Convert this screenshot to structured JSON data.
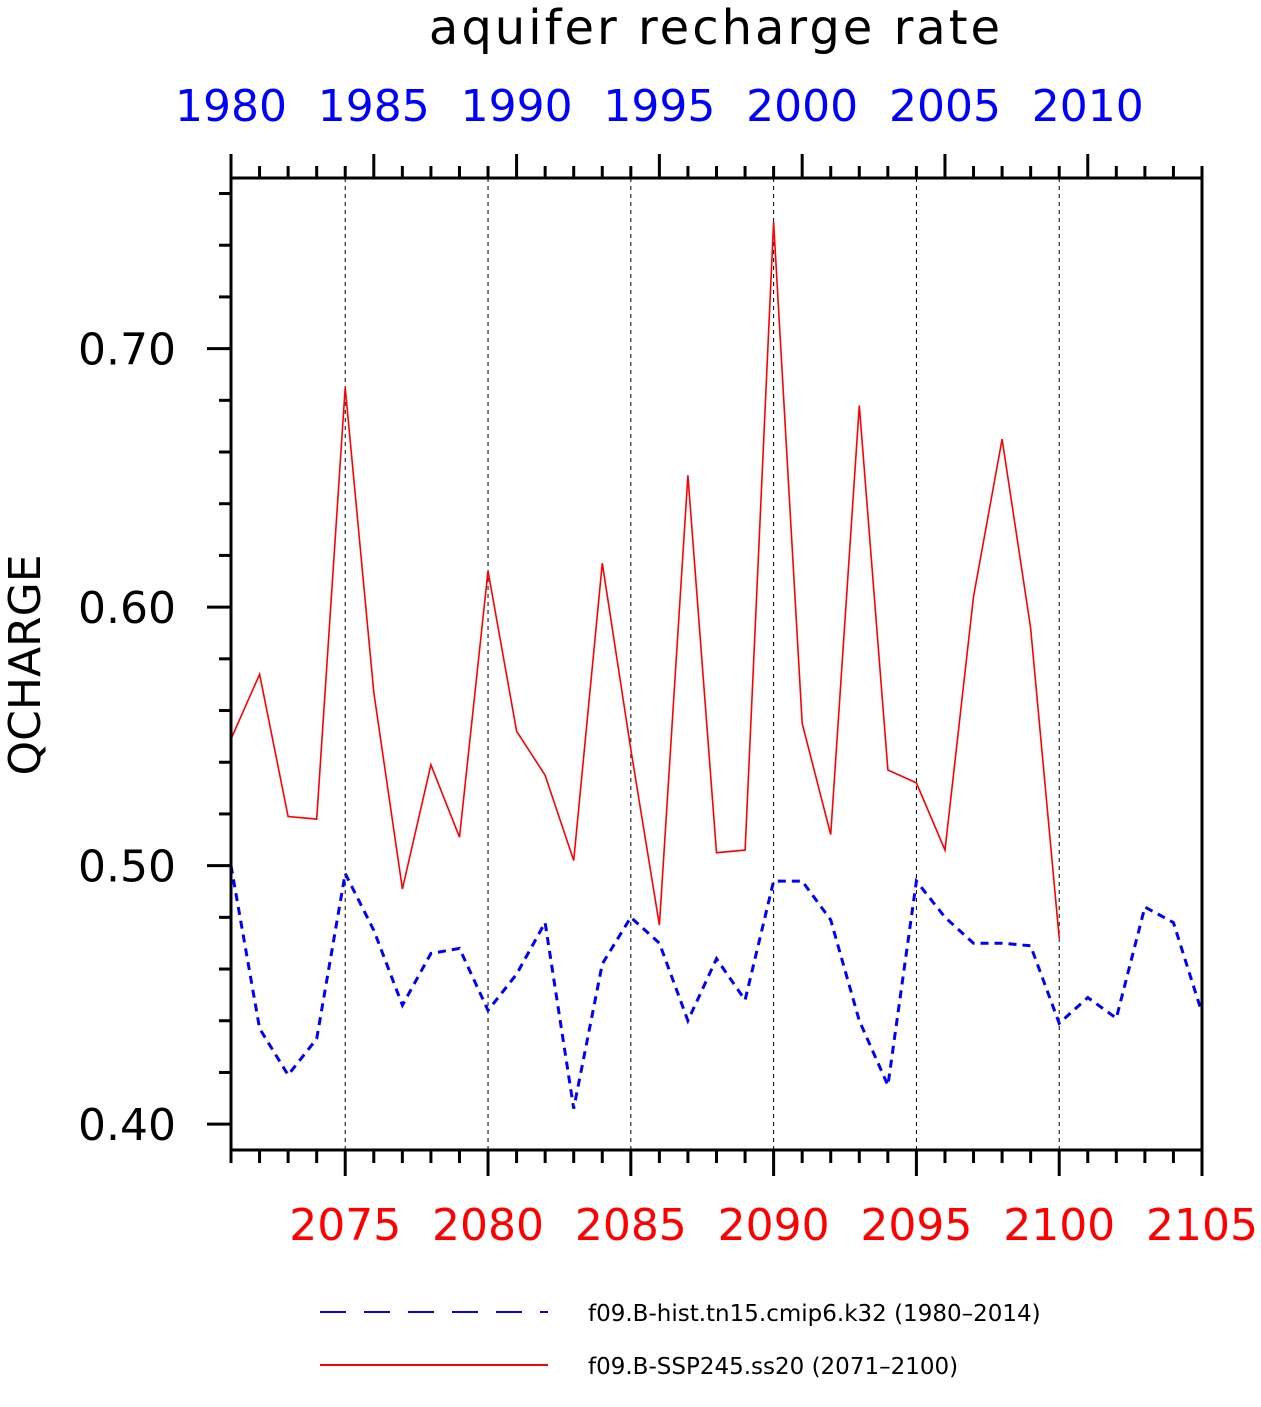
{
  "chart_data": {
    "type": "line",
    "title": "aquifer recharge rate",
    "ylabel": "QCHARGE",
    "ylim": [
      0.39,
      0.766
    ],
    "y_ticks": [
      "0.40",
      "0.50",
      "0.60",
      "0.70"
    ],
    "top_axis": {
      "color": "#0000ff",
      "range": [
        1980,
        2014
      ],
      "ticks": [
        "1980",
        "1985",
        "1990",
        "1995",
        "2000",
        "2005",
        "2010"
      ]
    },
    "bottom_axis": {
      "color": "#ff0000",
      "range": [
        2071,
        2105
      ],
      "ticks": [
        "2075",
        "2080",
        "2085",
        "2090",
        "2095",
        "2100",
        "2105"
      ]
    },
    "grid": "vertical dashed at major ticks",
    "legend_placement": "bottom",
    "series": [
      {
        "name": "f09.B-hist.tn15.cmip6.k32 (1980–2014)",
        "color": "#0000ff",
        "style": "dashed",
        "axis": "top",
        "x": [
          1980,
          1981,
          1982,
          1983,
          1984,
          1985,
          1986,
          1987,
          1988,
          1989,
          1990,
          1991,
          1992,
          1993,
          1994,
          1995,
          1996,
          1997,
          1998,
          1999,
          2000,
          2001,
          2002,
          2003,
          2004,
          2005,
          2006,
          2007,
          2008,
          2009,
          2010,
          2011,
          2012,
          2013,
          2014
        ],
        "values": [
          0.5,
          0.437,
          0.419,
          0.433,
          0.497,
          0.475,
          0.446,
          0.466,
          0.468,
          0.444,
          0.458,
          0.478,
          0.406,
          0.462,
          0.48,
          0.47,
          0.44,
          0.464,
          0.448,
          0.494,
          0.494,
          0.479,
          0.44,
          0.415,
          0.494,
          0.48,
          0.47,
          0.47,
          0.469,
          0.439,
          0.449,
          0.441,
          0.484,
          0.478,
          0.443
        ]
      },
      {
        "name": "f09.B-SSP245.ss20 (2071–2100)",
        "color": "#ff0000",
        "style": "solid",
        "axis": "bottom",
        "x": [
          2071,
          2072,
          2073,
          2074,
          2075,
          2076,
          2077,
          2078,
          2079,
          2080,
          2081,
          2082,
          2083,
          2084,
          2085,
          2086,
          2087,
          2088,
          2089,
          2090,
          2091,
          2092,
          2093,
          2094,
          2095,
          2096,
          2097,
          2098,
          2099,
          2100
        ],
        "values": [
          0.549,
          0.574,
          0.519,
          0.518,
          0.685,
          0.567,
          0.491,
          0.539,
          0.511,
          0.614,
          0.552,
          0.535,
          0.502,
          0.617,
          0.545,
          0.477,
          0.651,
          0.505,
          0.506,
          0.749,
          0.555,
          0.512,
          0.678,
          0.537,
          0.532,
          0.506,
          0.604,
          0.665,
          0.592,
          0.472
        ]
      }
    ]
  }
}
